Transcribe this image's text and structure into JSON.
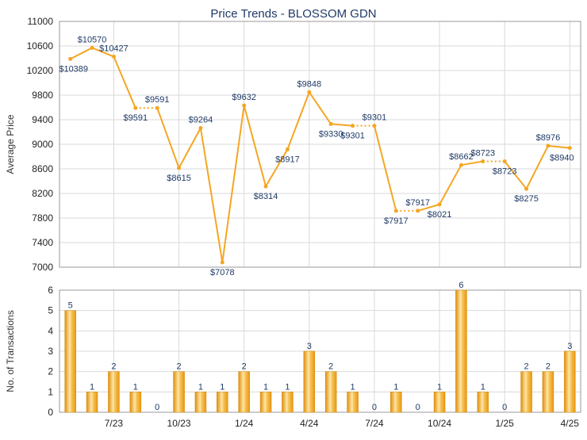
{
  "chart_data": [
    {
      "type": "line",
      "title": "Price Trends - BLOSSOM GDN",
      "ylabel": "Average Price",
      "ylim": [
        7000,
        11000
      ],
      "yticks": [
        7000,
        7400,
        7800,
        8200,
        8600,
        9000,
        9400,
        9800,
        10200,
        10600,
        11000
      ],
      "grid": true,
      "line_color": "#f5a623",
      "series": [
        {
          "values": [
            10389,
            10570,
            10427,
            9591,
            9591,
            8615,
            9264,
            7078,
            9632,
            8314,
            8917,
            9848,
            9330,
            9301,
            9301,
            7917,
            7917,
            8021,
            8662,
            8723,
            8723,
            8275,
            8976,
            8940
          ],
          "labels": [
            "$10389",
            "$10570",
            "$10427",
            "$9591",
            "$9591",
            "$8615",
            "$9264",
            "$7078",
            "$9632",
            "$8314",
            "$8917",
            "$9848",
            "$9330",
            "$9301",
            "$9301",
            "$7917",
            "$7917",
            "$8021",
            "$8662",
            "$8723",
            "$8723",
            "$8275",
            "$8976",
            "$8940"
          ],
          "month_index": [
            0,
            1,
            2,
            3,
            4,
            5,
            6,
            7,
            8,
            9,
            10,
            11,
            12,
            13,
            14,
            15,
            16,
            17,
            18,
            19,
            20,
            21,
            22,
            23
          ]
        }
      ]
    },
    {
      "type": "bar",
      "ylabel": "No. of Transactions",
      "ylim": [
        0,
        6
      ],
      "yticks": [
        0,
        1,
        2,
        3,
        4,
        5,
        6
      ],
      "grid": true,
      "bar_color": "#f5a623",
      "values": [
        5,
        1,
        2,
        1,
        0,
        2,
        1,
        1,
        2,
        1,
        1,
        3,
        2,
        1,
        0,
        1,
        0,
        1,
        6,
        1,
        0,
        2,
        2,
        3
      ],
      "x_tick_labels": [
        {
          "month_index": 2,
          "label": "7/23"
        },
        {
          "month_index": 5,
          "label": "10/23"
        },
        {
          "month_index": 8,
          "label": "1/24"
        },
        {
          "month_index": 11,
          "label": "4/24"
        },
        {
          "month_index": 14,
          "label": "7/24"
        },
        {
          "month_index": 17,
          "label": "10/24"
        },
        {
          "month_index": 20,
          "label": "1/25"
        },
        {
          "month_index": 23,
          "label": "4/25"
        }
      ]
    }
  ]
}
